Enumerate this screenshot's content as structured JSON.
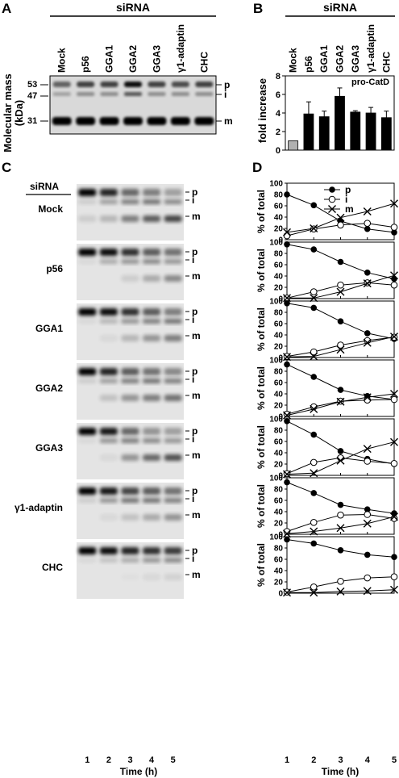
{
  "panel_a": {
    "letter": "A",
    "header": "siRNA",
    "lanes": [
      "Mock",
      "p56",
      "GGA1",
      "GGA2",
      "GGA3",
      "γ1-adaptin",
      "CHC"
    ],
    "ylabel_line1": "Molecular mass",
    "ylabel_line2": "(kDa)",
    "markers": [
      "53",
      "47",
      "31"
    ],
    "bands": [
      "p",
      "i",
      "m"
    ]
  },
  "panel_b": {
    "letter": "B",
    "header": "siRNA",
    "ylabel": "fold increase",
    "annotation": "pro-CatD",
    "colors": {
      "mock": "#b0b0b0",
      "others": "#000000"
    }
  },
  "panel_c": {
    "letter": "C",
    "header": "siRNA",
    "rows": [
      "Mock",
      "p56",
      "GGA1",
      "GGA2",
      "GGA3",
      "γ1-adaptin",
      "CHC"
    ],
    "bands": [
      "p",
      "i",
      "m"
    ],
    "lanes": [
      "1",
      "2",
      "3",
      "4",
      "5"
    ],
    "xlabel": "Time (h)"
  },
  "panel_d": {
    "letter": "D",
    "ylabel": "% of total",
    "xlabel": "Time (h)",
    "legend": [
      "p",
      "i",
      "m"
    ]
  },
  "chart_data": [
    {
      "type": "bar",
      "panel": "B",
      "categories": [
        "Mock",
        "p56",
        "GGA1",
        "GGA2",
        "GGA3",
        "γ1-adaptin",
        "CHC"
      ],
      "values": [
        1.0,
        3.9,
        3.6,
        5.8,
        4.1,
        4.0,
        3.5
      ],
      "errors": [
        0,
        1.3,
        0.6,
        0.9,
        0.15,
        0.6,
        0.7
      ],
      "ylabel": "fold increase",
      "ylim": [
        0,
        8
      ],
      "yticks": [
        0,
        2,
        4,
        6,
        8
      ]
    },
    {
      "type": "line",
      "panel": "D",
      "x": [
        1,
        2,
        3,
        4,
        5
      ],
      "xlabel": "Time (h)",
      "ylabel": "% of total",
      "ylim": [
        0,
        100
      ],
      "yticks": [
        0,
        20,
        40,
        60,
        80,
        100
      ],
      "panels": [
        {
          "row": "Mock",
          "series": [
            {
              "name": "p",
              "values": [
                80,
                61,
                33,
                19,
                13
              ]
            },
            {
              "name": "i",
              "values": [
                7,
                19,
                26,
                29,
                22
              ]
            },
            {
              "name": "m",
              "values": [
                13,
                20,
                39,
                50,
                64
              ]
            }
          ]
        },
        {
          "row": "p56",
          "series": [
            {
              "name": "p",
              "values": [
                96,
                87,
                65,
                46,
                35
              ]
            },
            {
              "name": "i",
              "values": [
                1,
                12,
                24,
                28,
                24
              ]
            },
            {
              "name": "m",
              "values": [
                1,
                1,
                12,
                27,
                41
              ]
            }
          ]
        },
        {
          "row": "GGA1",
          "series": [
            {
              "name": "p",
              "values": [
                96,
                88,
                64,
                43,
                33
              ]
            },
            {
              "name": "i",
              "values": [
                2,
                10,
                22,
                30,
                36
              ]
            },
            {
              "name": "m",
              "values": [
                1,
                2,
                14,
                26,
                37
              ]
            }
          ]
        },
        {
          "row": "GGA2",
          "series": [
            {
              "name": "p",
              "values": [
                92,
                70,
                47,
                36,
                30
              ]
            },
            {
              "name": "i",
              "values": [
                4,
                17,
                27,
                29,
                30
              ]
            },
            {
              "name": "m",
              "values": [
                2,
                13,
                26,
                34,
                40
              ]
            }
          ]
        },
        {
          "row": "GGA3",
          "series": [
            {
              "name": "p",
              "values": [
                96,
                72,
                43,
                29,
                20
              ]
            },
            {
              "name": "i",
              "values": [
                3,
                23,
                31,
                25,
                21
              ]
            },
            {
              "name": "m",
              "values": [
                2,
                4,
                26,
                47,
                59
              ]
            }
          ]
        },
        {
          "row": "γ1-adaptin",
          "series": [
            {
              "name": "p",
              "values": [
                92,
                73,
                52,
                44,
                37
              ]
            },
            {
              "name": "i",
              "values": [
                5,
                21,
                34,
                35,
                28
              ]
            },
            {
              "name": "m",
              "values": [
                1,
                5,
                11,
                19,
                31
              ]
            }
          ]
        },
        {
          "row": "CHC",
          "series": [
            {
              "name": "p",
              "values": [
                95,
                88,
                76,
                68,
                64
              ]
            },
            {
              "name": "i",
              "values": [
                2,
                11,
                21,
                27,
                29
              ]
            },
            {
              "name": "m",
              "values": [
                1,
                1,
                3,
                4,
                6
              ]
            }
          ]
        }
      ]
    }
  ]
}
